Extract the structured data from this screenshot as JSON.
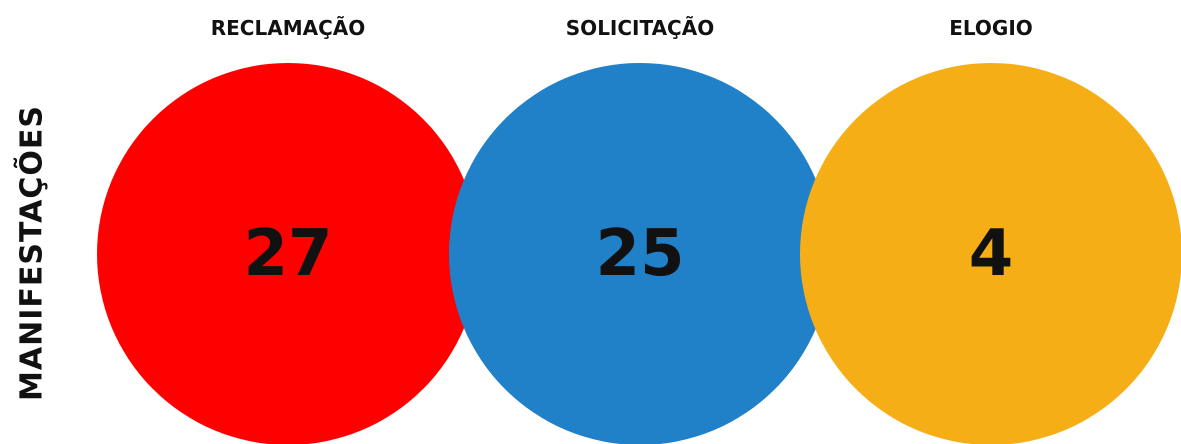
{
  "title": "MANIFESTAÇÕES",
  "items": [
    {
      "label": "RECLAMAÇÃO",
      "value": 27,
      "color": "#ff0000"
    },
    {
      "label": "SOLICITAÇÃO",
      "value": 25,
      "color": "#2080c8"
    },
    {
      "label": "ELOGIO",
      "value": 4,
      "color": "#f6ae17"
    }
  ]
}
